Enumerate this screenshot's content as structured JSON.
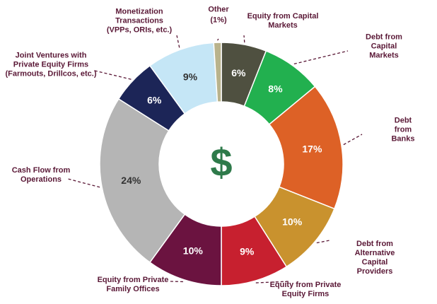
{
  "chart_data": {
    "type": "donut",
    "center_label": "$",
    "categories": [
      "Equity from Capital\nMarkets",
      "Debt from\nCapital Markets",
      "Debt from Banks",
      "Debt from Alternative\nCapital Providers",
      "Equity from Private\nEquity Firms",
      "Equity from Private\nFamily Offices",
      "Cash Flow from\nOperations",
      "Joint Ventures with\nPrivate Equity Firms\n(Farmouts, Drillcos, etc.)",
      "Monetization\nTransactions\n(VPPs, ORIs, etc.)",
      "Other"
    ],
    "values": [
      6,
      8,
      17,
      10,
      9,
      10,
      24,
      6,
      9,
      1
    ],
    "value_labels": [
      "6%",
      "8%",
      "17%",
      "10%",
      "9%",
      "10%",
      "24%",
      "6%",
      "9%",
      "(1%)"
    ],
    "colors": [
      "#4f5040",
      "#22b04f",
      "#dd6126",
      "#c9922e",
      "#c7202f",
      "#6b1340",
      "#b5b5b5",
      "#1c2557",
      "#c5e6f6",
      "#b9b38c"
    ]
  }
}
